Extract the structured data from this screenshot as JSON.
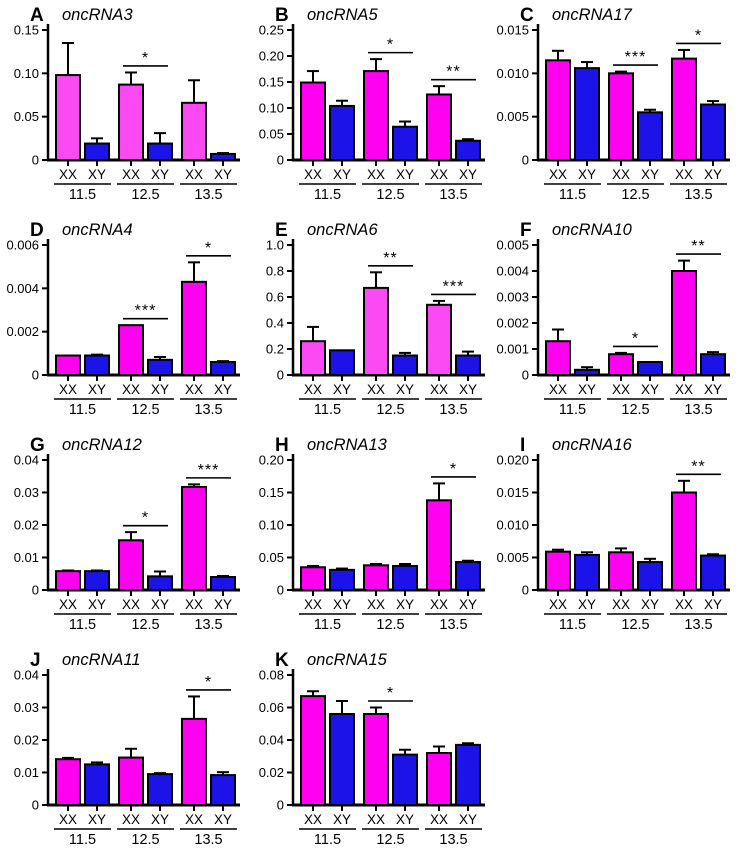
{
  "figure": {
    "background": "#ffffff",
    "group_labels": [
      "11.5",
      "12.5",
      "13.5"
    ],
    "bar_labels": [
      "XX",
      "XY"
    ],
    "colors": {
      "xx": "#ff00f0",
      "xx_light": "#fb4af4",
      "xy": "#1c13e8",
      "axis": "#000000",
      "error_bar": "#000000"
    }
  },
  "chart_data": [
    {
      "panel": "A",
      "title": "oncRNA3",
      "type": "bar",
      "xx_shade": "light",
      "categories": [
        "11.5",
        "12.5",
        "13.5"
      ],
      "ylim": [
        0,
        0.15
      ],
      "yticks": [
        {
          "v": 0,
          "label": "0"
        },
        {
          "v": 0.05,
          "label": "0.05"
        },
        {
          "v": 0.1,
          "label": "0.10"
        },
        {
          "v": 0.15,
          "label": "0.15"
        }
      ],
      "series": [
        {
          "name": "XX",
          "values": [
            0.098,
            0.087,
            0.066
          ],
          "errors": [
            0.037,
            0.014,
            0.026
          ]
        },
        {
          "name": "XY",
          "values": [
            0.019,
            0.019,
            0.007
          ],
          "errors": [
            0.006,
            0.012,
            0.001
          ]
        }
      ],
      "significance": [
        {
          "group": 1,
          "stars": "*"
        }
      ]
    },
    {
      "panel": "B",
      "title": "oncRNA5",
      "type": "bar",
      "xx_shade": "normal",
      "categories": [
        "11.5",
        "12.5",
        "13.5"
      ],
      "ylim": [
        0,
        0.25
      ],
      "yticks": [
        {
          "v": 0,
          "label": "0"
        },
        {
          "v": 0.05,
          "label": "0.05"
        },
        {
          "v": 0.1,
          "label": "0.10"
        },
        {
          "v": 0.15,
          "label": "0.15"
        },
        {
          "v": 0.2,
          "label": "0.20"
        },
        {
          "v": 0.25,
          "label": "0.25"
        }
      ],
      "series": [
        {
          "name": "XX",
          "values": [
            0.149,
            0.171,
            0.126
          ],
          "errors": [
            0.022,
            0.023,
            0.016
          ]
        },
        {
          "name": "XY",
          "values": [
            0.104,
            0.064,
            0.037
          ],
          "errors": [
            0.01,
            0.01,
            0.003
          ]
        }
      ],
      "significance": [
        {
          "group": 1,
          "stars": "*"
        },
        {
          "group": 2,
          "stars": "**"
        }
      ]
    },
    {
      "panel": "C",
      "title": "oncRNA17",
      "type": "bar",
      "xx_shade": "normal",
      "categories": [
        "11.5",
        "12.5",
        "13.5"
      ],
      "ylim": [
        0,
        0.015
      ],
      "yticks": [
        {
          "v": 0,
          "label": "0"
        },
        {
          "v": 0.005,
          "label": "0.005"
        },
        {
          "v": 0.01,
          "label": "0.010"
        },
        {
          "v": 0.015,
          "label": "0.015"
        }
      ],
      "series": [
        {
          "name": "XX",
          "values": [
            0.0115,
            0.01,
            0.0117
          ],
          "errors": [
            0.0011,
            0.0002,
            0.001
          ]
        },
        {
          "name": "XY",
          "values": [
            0.0106,
            0.0055,
            0.0064
          ],
          "errors": [
            0.0007,
            0.0003,
            0.0004
          ]
        }
      ],
      "significance": [
        {
          "group": 1,
          "stars": "***"
        },
        {
          "group": 2,
          "stars": "*"
        }
      ]
    },
    {
      "panel": "D",
      "title": "oncRNA4",
      "type": "bar",
      "xx_shade": "normal",
      "categories": [
        "11.5",
        "12.5",
        "13.5"
      ],
      "ylim": [
        0,
        0.006
      ],
      "yticks": [
        {
          "v": 0,
          "label": "0"
        },
        {
          "v": 0.002,
          "label": "0.002"
        },
        {
          "v": 0.004,
          "label": "0.004"
        },
        {
          "v": 0.006,
          "label": "0.006"
        }
      ],
      "series": [
        {
          "name": "XX",
          "values": [
            0.0009,
            0.0023,
            0.0043
          ],
          "errors": [
            0,
            0,
            0.0009
          ]
        },
        {
          "name": "XY",
          "values": [
            0.0009,
            0.0007,
            0.0006
          ],
          "errors": [
            4e-05,
            0.00013,
            4e-05
          ]
        }
      ],
      "significance": [
        {
          "group": 1,
          "stars": "***"
        },
        {
          "group": 2,
          "stars": "*"
        }
      ]
    },
    {
      "panel": "E",
      "title": "oncRNA6",
      "type": "bar",
      "xx_shade": "light",
      "categories": [
        "11.5",
        "12.5",
        "13.5"
      ],
      "ylim": [
        0,
        1.0
      ],
      "yticks": [
        {
          "v": 0,
          "label": "0"
        },
        {
          "v": 0.2,
          "label": "0.2"
        },
        {
          "v": 0.4,
          "label": "0.4"
        },
        {
          "v": 0.6,
          "label": "0.6"
        },
        {
          "v": 0.8,
          "label": "0.8"
        },
        {
          "v": 1.0,
          "label": "1.0"
        }
      ],
      "series": [
        {
          "name": "XX",
          "values": [
            0.26,
            0.67,
            0.54
          ],
          "errors": [
            0.11,
            0.12,
            0.03
          ]
        },
        {
          "name": "XY",
          "values": [
            0.19,
            0.15,
            0.15
          ],
          "errors": [
            0,
            0.02,
            0.03
          ]
        }
      ],
      "significance": [
        {
          "group": 1,
          "stars": "**"
        },
        {
          "group": 2,
          "stars": "***"
        }
      ]
    },
    {
      "panel": "F",
      "title": "oncRNA10",
      "type": "bar",
      "xx_shade": "normal",
      "categories": [
        "11.5",
        "12.5",
        "13.5"
      ],
      "ylim": [
        0,
        0.005
      ],
      "yticks": [
        {
          "v": 0,
          "label": "0"
        },
        {
          "v": 0.001,
          "label": "0.001"
        },
        {
          "v": 0.002,
          "label": "0.002"
        },
        {
          "v": 0.003,
          "label": "0.003"
        },
        {
          "v": 0.004,
          "label": "0.004"
        },
        {
          "v": 0.005,
          "label": "0.005"
        }
      ],
      "series": [
        {
          "name": "XX",
          "values": [
            0.0013,
            0.0008,
            0.004
          ],
          "errors": [
            0.00045,
            5e-05,
            0.0004
          ]
        },
        {
          "name": "XY",
          "values": [
            0.0002,
            0.0005,
            0.0008
          ],
          "errors": [
            0.0001,
            0,
            8e-05
          ]
        }
      ],
      "significance": [
        {
          "group": 1,
          "stars": "*"
        },
        {
          "group": 2,
          "stars": "**"
        }
      ]
    },
    {
      "panel": "G",
      "title": "oncRNA12",
      "type": "bar",
      "xx_shade": "normal",
      "categories": [
        "11.5",
        "12.5",
        "13.5"
      ],
      "ylim": [
        0,
        0.04
      ],
      "yticks": [
        {
          "v": 0,
          "label": "0"
        },
        {
          "v": 0.01,
          "label": "0.01"
        },
        {
          "v": 0.02,
          "label": "0.02"
        },
        {
          "v": 0.03,
          "label": "0.03"
        },
        {
          "v": 0.04,
          "label": "0.04"
        }
      ],
      "series": [
        {
          "name": "XX",
          "values": [
            0.0058,
            0.0153,
            0.0317
          ],
          "errors": [
            0.0002,
            0.0025,
            0.0008
          ]
        },
        {
          "name": "XY",
          "values": [
            0.0058,
            0.0042,
            0.004
          ],
          "errors": [
            0.0002,
            0.0015,
            0.0003
          ]
        }
      ],
      "significance": [
        {
          "group": 1,
          "stars": "*"
        },
        {
          "group": 2,
          "stars": "***"
        }
      ]
    },
    {
      "panel": "H",
      "title": "oncRNA13",
      "type": "bar",
      "xx_shade": "normal",
      "categories": [
        "11.5",
        "12.5",
        "13.5"
      ],
      "ylim": [
        0,
        0.2
      ],
      "yticks": [
        {
          "v": 0,
          "label": "0"
        },
        {
          "v": 0.05,
          "label": "0.05"
        },
        {
          "v": 0.1,
          "label": "0.10"
        },
        {
          "v": 0.15,
          "label": "0.15"
        },
        {
          "v": 0.2,
          "label": "0.20"
        }
      ],
      "series": [
        {
          "name": "XX",
          "values": [
            0.035,
            0.038,
            0.138
          ],
          "errors": [
            0.002,
            0.002,
            0.026
          ]
        },
        {
          "name": "XY",
          "values": [
            0.031,
            0.037,
            0.043
          ],
          "errors": [
            0.002,
            0.003,
            0.002
          ]
        }
      ],
      "significance": [
        {
          "group": 2,
          "stars": "*"
        }
      ]
    },
    {
      "panel": "I",
      "title": "oncRNA16",
      "type": "bar",
      "xx_shade": "normal",
      "categories": [
        "11.5",
        "12.5",
        "13.5"
      ],
      "ylim": [
        0,
        0.02
      ],
      "yticks": [
        {
          "v": 0,
          "label": "0"
        },
        {
          "v": 0.005,
          "label": "0.005"
        },
        {
          "v": 0.01,
          "label": "0.010"
        },
        {
          "v": 0.015,
          "label": "0.015"
        },
        {
          "v": 0.02,
          "label": "0.020"
        }
      ],
      "series": [
        {
          "name": "XX",
          "values": [
            0.0059,
            0.0058,
            0.015
          ],
          "errors": [
            0.0003,
            0.0006,
            0.0018
          ]
        },
        {
          "name": "XY",
          "values": [
            0.0054,
            0.0043,
            0.0053
          ],
          "errors": [
            0.0004,
            0.0005,
            0.0002
          ]
        }
      ],
      "significance": [
        {
          "group": 2,
          "stars": "**"
        }
      ]
    },
    {
      "panel": "J",
      "title": "oncRNA11",
      "type": "bar",
      "xx_shade": "normal",
      "categories": [
        "11.5",
        "12.5",
        "13.5"
      ],
      "ylim": [
        0,
        0.04
      ],
      "yticks": [
        {
          "v": 0,
          "label": "0"
        },
        {
          "v": 0.01,
          "label": "0.01"
        },
        {
          "v": 0.02,
          "label": "0.02"
        },
        {
          "v": 0.03,
          "label": "0.03"
        },
        {
          "v": 0.04,
          "label": "0.04"
        }
      ],
      "series": [
        {
          "name": "XX",
          "values": [
            0.0141,
            0.0146,
            0.0265
          ],
          "errors": [
            0.0004,
            0.0027,
            0.0069
          ]
        },
        {
          "name": "XY",
          "values": [
            0.0125,
            0.0095,
            0.0092
          ],
          "errors": [
            0.0006,
            0.0003,
            0.0009
          ]
        }
      ],
      "significance": [
        {
          "group": 2,
          "stars": "*"
        }
      ]
    },
    {
      "panel": "K",
      "title": "oncRNA15",
      "type": "bar",
      "xx_shade": "normal",
      "categories": [
        "11.5",
        "12.5",
        "13.5"
      ],
      "ylim": [
        0,
        0.08
      ],
      "yticks": [
        {
          "v": 0,
          "label": "0"
        },
        {
          "v": 0.02,
          "label": "0.02"
        },
        {
          "v": 0.04,
          "label": "0.04"
        },
        {
          "v": 0.06,
          "label": "0.06"
        },
        {
          "v": 0.08,
          "label": "0.08"
        }
      ],
      "series": [
        {
          "name": "XX",
          "values": [
            0.067,
            0.056,
            0.032
          ],
          "errors": [
            0.003,
            0.004,
            0.004
          ]
        },
        {
          "name": "XY",
          "values": [
            0.056,
            0.031,
            0.037
          ],
          "errors": [
            0.008,
            0.003,
            0.001
          ]
        }
      ],
      "significance": [
        {
          "group": 1,
          "stars": "*"
        }
      ]
    }
  ]
}
